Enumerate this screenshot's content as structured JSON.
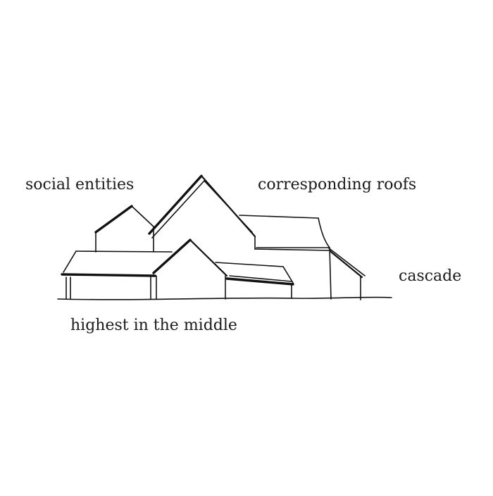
{
  "labels": {
    "social_entities": "social entities",
    "corresponding_roofs": "corresponding roofs",
    "cascade": "cascade",
    "highest_in_the_middle": "highest in the middle"
  },
  "colors": {
    "ink": "#111111",
    "background": "#ffffff"
  }
}
